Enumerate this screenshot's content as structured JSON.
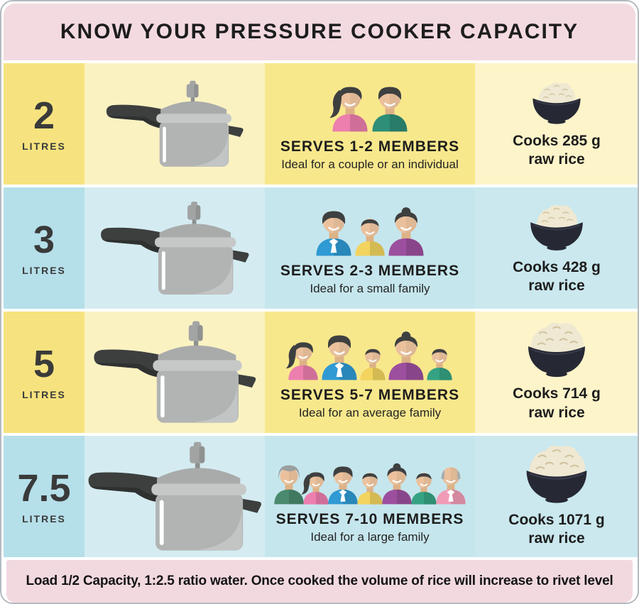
{
  "header": {
    "title": "KNOW YOUR PRESSURE COOKER CAPACITY"
  },
  "footer": {
    "note": "Load 1/2 Capacity, 1:2.5 ratio water. Once cooked the volume of rice will increase to rivet level"
  },
  "colors": {
    "title_bg": "#f3dae1",
    "footer_bg": "#f2d9e0",
    "yellow_col1": "#f6e37f",
    "yellow_col2": "#fbf2c2",
    "yellow_col3": "#f8e88c",
    "yellow_col4": "#fdf4ca",
    "blue_col1": "#b5dfe9",
    "blue_col2": "#d4ecf1",
    "blue_col3": "#c6e6ed",
    "blue_col4": "#cae8ee",
    "text": "#1d1d1d"
  },
  "rows": [
    {
      "capacity": "2",
      "unit": "LITRES",
      "theme": "yellow",
      "serves_title": "SERVES 1-2 MEMBERS",
      "serves_subtitle": "Ideal for a couple or an individual",
      "cooks_line1": "Cooks 285 g",
      "cooks_line2": "raw rice",
      "people": [
        {
          "type": "woman-ponytail",
          "size": "md",
          "shirt": "#ec7fae",
          "hair": "#3e4040"
        },
        {
          "type": "man",
          "size": "md",
          "shirt": "#2e8e77",
          "hair": "#3e4040"
        }
      ]
    },
    {
      "capacity": "3",
      "unit": "LITRES",
      "theme": "blue",
      "serves_title": "SERVES 2-3 MEMBERS",
      "serves_subtitle": "Ideal for a small family",
      "cooks_line1": "Cooks 428 g",
      "cooks_line2": "raw rice",
      "people": [
        {
          "type": "man",
          "size": "md",
          "shirt": "#2f9ad3",
          "hair": "#3e4040",
          "tie": true
        },
        {
          "type": "boy",
          "size": "sm",
          "shirt": "#f2d45f",
          "hair": "#3e4040"
        },
        {
          "type": "woman-bun",
          "size": "md",
          "shirt": "#9c4f9e",
          "hair": "#3e4040"
        }
      ]
    },
    {
      "capacity": "5",
      "unit": "LITRES",
      "theme": "yellow",
      "serves_title": "SERVES 5-7 MEMBERS",
      "serves_subtitle": "Ideal for an average family",
      "cooks_line1": "Cooks 714 g",
      "cooks_line2": "raw rice",
      "people": [
        {
          "type": "woman-ponytail",
          "size": "sm",
          "shirt": "#ec7fae",
          "hair": "#3e4040"
        },
        {
          "type": "man",
          "size": "md",
          "shirt": "#2f9ad3",
          "hair": "#3e4040",
          "tie": true
        },
        {
          "type": "boy",
          "size": "xs",
          "shirt": "#f2d45f",
          "hair": "#3e4040"
        },
        {
          "type": "woman-bun",
          "size": "md",
          "shirt": "#9c4f9e",
          "hair": "#3e4040"
        },
        {
          "type": "boy",
          "size": "xs",
          "shirt": "#35a383",
          "hair": "#3e4040"
        }
      ]
    },
    {
      "capacity": "7.5",
      "unit": "LITRES",
      "theme": "blue",
      "serves_title": "SERVES 7-10 MEMBERS",
      "serves_subtitle": "Ideal for a large family",
      "cooks_line1": "Cooks 1071 g",
      "cooks_line2": "raw rice",
      "people": [
        {
          "type": "grandma",
          "size": "sm",
          "shirt": "#4b8a6e",
          "hair": "#9a9f9f"
        },
        {
          "type": "woman-ponytail",
          "size": "xs",
          "shirt": "#ec7fae",
          "hair": "#3e4040"
        },
        {
          "type": "man",
          "size": "sm",
          "shirt": "#2f9ad3",
          "hair": "#3e4040",
          "tie": true
        },
        {
          "type": "boy",
          "size": "xs",
          "shirt": "#f2d45f",
          "hair": "#3e4040"
        },
        {
          "type": "woman-bun",
          "size": "sm",
          "shirt": "#9c4f9e",
          "hair": "#3e4040"
        },
        {
          "type": "boy",
          "size": "xs",
          "shirt": "#35a383",
          "hair": "#3e4040"
        },
        {
          "type": "grandpa",
          "size": "sm",
          "shirt": "#f19cb7",
          "hair": "#a9adad",
          "tie": true
        }
      ]
    }
  ]
}
